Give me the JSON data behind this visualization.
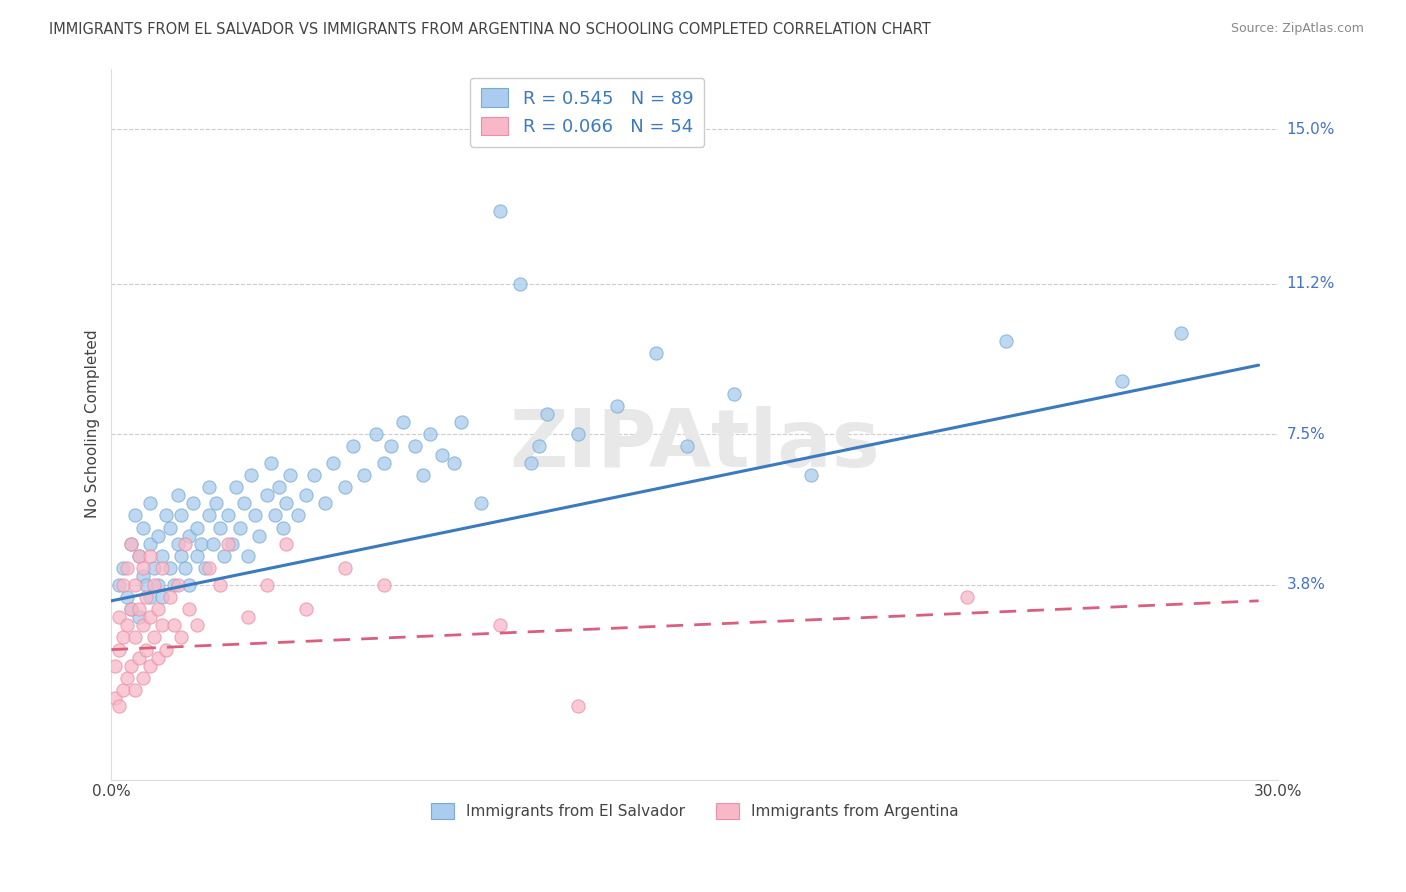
{
  "title": "IMMIGRANTS FROM EL SALVADOR VS IMMIGRANTS FROM ARGENTINA NO SCHOOLING COMPLETED CORRELATION CHART",
  "source": "Source: ZipAtlas.com",
  "ylabel": "No Schooling Completed",
  "yticks_right": [
    "15.0%",
    "11.2%",
    "7.5%",
    "3.8%"
  ],
  "yticks_right_vals": [
    0.15,
    0.112,
    0.075,
    0.038
  ],
  "xmin": 0.0,
  "xmax": 0.3,
  "ymin": -0.01,
  "ymax": 0.165,
  "blue_R": 0.545,
  "blue_N": 89,
  "pink_R": 0.066,
  "pink_N": 54,
  "blue_color": "#aaccee",
  "pink_color": "#f8b8c8",
  "blue_edge_color": "#7aaad0",
  "pink_edge_color": "#e890a8",
  "blue_line_color": "#3a7abd",
  "pink_line_color": "#d95f7f",
  "blue_scatter": [
    [
      0.002,
      0.038
    ],
    [
      0.003,
      0.042
    ],
    [
      0.004,
      0.035
    ],
    [
      0.005,
      0.048
    ],
    [
      0.005,
      0.032
    ],
    [
      0.006,
      0.055
    ],
    [
      0.007,
      0.03
    ],
    [
      0.007,
      0.045
    ],
    [
      0.008,
      0.04
    ],
    [
      0.008,
      0.052
    ],
    [
      0.009,
      0.038
    ],
    [
      0.01,
      0.035
    ],
    [
      0.01,
      0.048
    ],
    [
      0.01,
      0.058
    ],
    [
      0.011,
      0.042
    ],
    [
      0.012,
      0.038
    ],
    [
      0.012,
      0.05
    ],
    [
      0.013,
      0.045
    ],
    [
      0.013,
      0.035
    ],
    [
      0.014,
      0.055
    ],
    [
      0.015,
      0.042
    ],
    [
      0.015,
      0.052
    ],
    [
      0.016,
      0.038
    ],
    [
      0.017,
      0.06
    ],
    [
      0.017,
      0.048
    ],
    [
      0.018,
      0.045
    ],
    [
      0.018,
      0.055
    ],
    [
      0.019,
      0.042
    ],
    [
      0.02,
      0.05
    ],
    [
      0.02,
      0.038
    ],
    [
      0.021,
      0.058
    ],
    [
      0.022,
      0.045
    ],
    [
      0.022,
      0.052
    ],
    [
      0.023,
      0.048
    ],
    [
      0.024,
      0.042
    ],
    [
      0.025,
      0.055
    ],
    [
      0.025,
      0.062
    ],
    [
      0.026,
      0.048
    ],
    [
      0.027,
      0.058
    ],
    [
      0.028,
      0.052
    ],
    [
      0.029,
      0.045
    ],
    [
      0.03,
      0.055
    ],
    [
      0.031,
      0.048
    ],
    [
      0.032,
      0.062
    ],
    [
      0.033,
      0.052
    ],
    [
      0.034,
      0.058
    ],
    [
      0.035,
      0.045
    ],
    [
      0.036,
      0.065
    ],
    [
      0.037,
      0.055
    ],
    [
      0.038,
      0.05
    ],
    [
      0.04,
      0.06
    ],
    [
      0.041,
      0.068
    ],
    [
      0.042,
      0.055
    ],
    [
      0.043,
      0.062
    ],
    [
      0.044,
      0.052
    ],
    [
      0.045,
      0.058
    ],
    [
      0.046,
      0.065
    ],
    [
      0.048,
      0.055
    ],
    [
      0.05,
      0.06
    ],
    [
      0.052,
      0.065
    ],
    [
      0.055,
      0.058
    ],
    [
      0.057,
      0.068
    ],
    [
      0.06,
      0.062
    ],
    [
      0.062,
      0.072
    ],
    [
      0.065,
      0.065
    ],
    [
      0.068,
      0.075
    ],
    [
      0.07,
      0.068
    ],
    [
      0.072,
      0.072
    ],
    [
      0.075,
      0.078
    ],
    [
      0.078,
      0.072
    ],
    [
      0.08,
      0.065
    ],
    [
      0.082,
      0.075
    ],
    [
      0.085,
      0.07
    ],
    [
      0.088,
      0.068
    ],
    [
      0.09,
      0.078
    ],
    [
      0.095,
      0.058
    ],
    [
      0.1,
      0.13
    ],
    [
      0.105,
      0.112
    ],
    [
      0.108,
      0.068
    ],
    [
      0.11,
      0.072
    ],
    [
      0.112,
      0.08
    ],
    [
      0.12,
      0.075
    ],
    [
      0.13,
      0.082
    ],
    [
      0.14,
      0.095
    ],
    [
      0.148,
      0.072
    ],
    [
      0.16,
      0.085
    ],
    [
      0.18,
      0.065
    ],
    [
      0.23,
      0.098
    ],
    [
      0.26,
      0.088
    ],
    [
      0.275,
      0.1
    ]
  ],
  "pink_scatter": [
    [
      0.001,
      0.01
    ],
    [
      0.001,
      0.018
    ],
    [
      0.002,
      0.008
    ],
    [
      0.002,
      0.022
    ],
    [
      0.002,
      0.03
    ],
    [
      0.003,
      0.012
    ],
    [
      0.003,
      0.025
    ],
    [
      0.003,
      0.038
    ],
    [
      0.004,
      0.015
    ],
    [
      0.004,
      0.028
    ],
    [
      0.004,
      0.042
    ],
    [
      0.005,
      0.018
    ],
    [
      0.005,
      0.032
    ],
    [
      0.005,
      0.048
    ],
    [
      0.006,
      0.012
    ],
    [
      0.006,
      0.025
    ],
    [
      0.006,
      0.038
    ],
    [
      0.007,
      0.02
    ],
    [
      0.007,
      0.032
    ],
    [
      0.007,
      0.045
    ],
    [
      0.008,
      0.015
    ],
    [
      0.008,
      0.028
    ],
    [
      0.008,
      0.042
    ],
    [
      0.009,
      0.022
    ],
    [
      0.009,
      0.035
    ],
    [
      0.01,
      0.018
    ],
    [
      0.01,
      0.03
    ],
    [
      0.01,
      0.045
    ],
    [
      0.011,
      0.025
    ],
    [
      0.011,
      0.038
    ],
    [
      0.012,
      0.02
    ],
    [
      0.012,
      0.032
    ],
    [
      0.013,
      0.028
    ],
    [
      0.013,
      0.042
    ],
    [
      0.014,
      0.022
    ],
    [
      0.015,
      0.035
    ],
    [
      0.016,
      0.028
    ],
    [
      0.017,
      0.038
    ],
    [
      0.018,
      0.025
    ],
    [
      0.019,
      0.048
    ],
    [
      0.02,
      0.032
    ],
    [
      0.022,
      0.028
    ],
    [
      0.025,
      0.042
    ],
    [
      0.028,
      0.038
    ],
    [
      0.03,
      0.048
    ],
    [
      0.035,
      0.03
    ],
    [
      0.04,
      0.038
    ],
    [
      0.045,
      0.048
    ],
    [
      0.05,
      0.032
    ],
    [
      0.06,
      0.042
    ],
    [
      0.07,
      0.038
    ],
    [
      0.1,
      0.028
    ],
    [
      0.12,
      0.008
    ],
    [
      0.22,
      0.035
    ]
  ],
  "blue_trend_x": [
    0.0,
    0.295
  ],
  "blue_trend_y": [
    0.034,
    0.092
  ],
  "pink_trend_x": [
    0.0,
    0.295
  ],
  "pink_trend_y": [
    0.022,
    0.034
  ],
  "legend_label_blue": "Immigrants from El Salvador",
  "legend_label_pink": "Immigrants from Argentina",
  "background_color": "#ffffff",
  "grid_color": "#cccccc",
  "title_color": "#444444",
  "axis_label_color": "#444444",
  "right_tick_color": "#4472c4",
  "watermark_color": "#e8e8e8"
}
